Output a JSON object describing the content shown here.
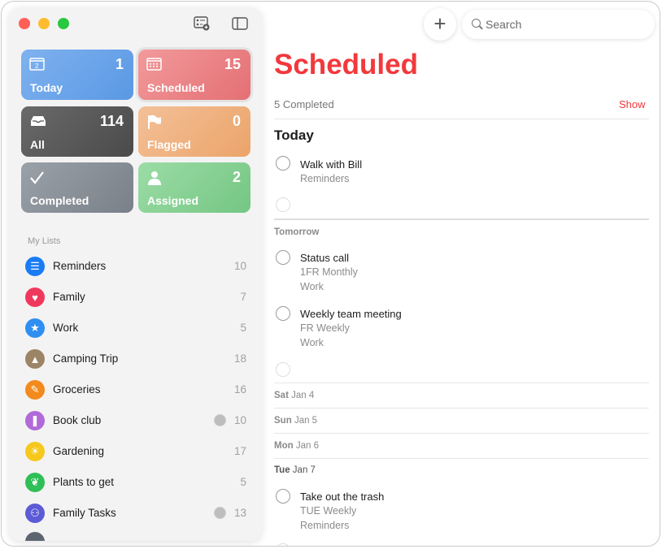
{
  "window": {
    "close_color": "#ff5f57",
    "minimize_color": "#febc2e",
    "zoom_color": "#28c840"
  },
  "toolbar": {
    "new_list_icon": "checklist-add-icon",
    "sidebar_icon": "sidebar-toggle-icon",
    "add_label": "+",
    "search_placeholder": "Search"
  },
  "smart_lists": [
    {
      "label": "Today",
      "count": "1",
      "color": "#5f9ee6",
      "icon": "calendar-today-icon"
    },
    {
      "label": "Scheduled",
      "count": "15",
      "color": "#e8767a",
      "icon": "calendar-icon"
    },
    {
      "label": "All",
      "count": "114",
      "color": "#555555",
      "icon": "tray-icon"
    },
    {
      "label": "Flagged",
      "count": "0",
      "color": "#eea872",
      "icon": "flag-icon"
    },
    {
      "label": "Completed",
      "count": "",
      "color": "#8a9098",
      "icon": "checkmark-icon"
    },
    {
      "label": "Assigned",
      "count": "2",
      "color": "#7ecb8b",
      "icon": "person-icon"
    }
  ],
  "my_lists_heading": "My Lists",
  "lists": [
    {
      "name": "Reminders",
      "count": "10",
      "color": "#1a7cf5",
      "glyph": "☰",
      "shared": false
    },
    {
      "name": "Family",
      "count": "7",
      "color": "#f0385d",
      "glyph": "♥",
      "shared": false
    },
    {
      "name": "Work",
      "count": "5",
      "color": "#2f8ff0",
      "glyph": "★",
      "shared": false
    },
    {
      "name": "Camping Trip",
      "count": "18",
      "color": "#9c8466",
      "glyph": "▲",
      "shared": false
    },
    {
      "name": "Groceries",
      "count": "16",
      "color": "#f28a1d",
      "glyph": "✎",
      "shared": false
    },
    {
      "name": "Book club",
      "count": "10",
      "color": "#b26ad8",
      "glyph": "❚",
      "shared": true
    },
    {
      "name": "Gardening",
      "count": "17",
      "color": "#f6c81c",
      "glyph": "☀",
      "shared": false
    },
    {
      "name": "Plants to get",
      "count": "5",
      "color": "#2fbf57",
      "glyph": "❦",
      "shared": false
    },
    {
      "name": "Family Tasks",
      "count": "13",
      "color": "#5b5bd6",
      "glyph": "⚇",
      "shared": true
    }
  ],
  "main": {
    "title": "Scheduled",
    "completed": "5 Completed",
    "show": "Show",
    "today": "Today",
    "today_items": [
      {
        "title": "Walk with Bill",
        "list": "Reminders"
      }
    ],
    "tomorrow": "Tomorrow",
    "tomorrow_items": [
      {
        "title": "Status call",
        "repeat": "1FR Monthly",
        "list": "Work"
      },
      {
        "title": "Weekly team meeting",
        "repeat": "FR Weekly",
        "list": "Work"
      }
    ],
    "days": [
      {
        "dow": "Sat",
        "date": "Jan 4"
      },
      {
        "dow": "Sun",
        "date": "Jan 5"
      },
      {
        "dow": "Mon",
        "date": "Jan 6"
      },
      {
        "dow": "Tue",
        "date": "Jan 7"
      }
    ],
    "tue_items": [
      {
        "title": "Take out the trash",
        "repeat": "TUE Weekly",
        "list": "Reminders"
      }
    ]
  }
}
